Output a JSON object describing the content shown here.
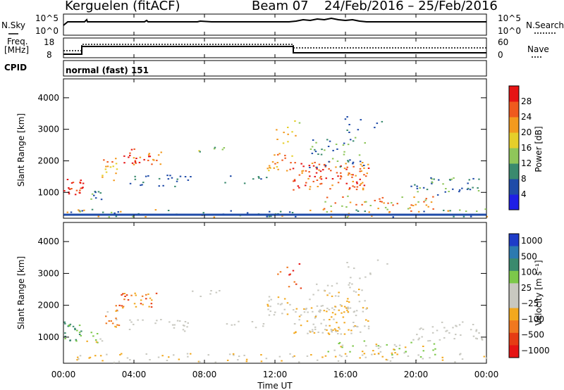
{
  "header": {
    "station": "Kerguelen (fitACF)",
    "beam": "Beam 07",
    "date_range": "24/Feb/2016 – 25/Feb/2016"
  },
  "noise_panel": {
    "left_label": "N.Sky",
    "right_label": "N.Search",
    "left_ticks": [
      "10^5",
      "10^0"
    ],
    "right_ticks": [
      "10^5",
      "10^0"
    ]
  },
  "freq_panel": {
    "left_label_1": "Freq.",
    "left_label_2": "[MHz]",
    "right_label": "Nave",
    "left_ticks": [
      "18",
      "8"
    ],
    "right_ticks": [
      "60",
      "0"
    ]
  },
  "cpid_panel": {
    "label": "CPID",
    "mode_text": "normal (fast) 151"
  },
  "chart_data": [
    {
      "type": "heatmap",
      "name": "power",
      "ylabel": "Slant Range [km]",
      "ylim": [
        180,
        4600
      ],
      "yticks": [
        "1000",
        "2000",
        "3000",
        "4000"
      ],
      "colorbar_label": "Power [dB]",
      "colorbar_ticks": [
        "4",
        "8",
        "12",
        "16",
        "20",
        "24",
        "28"
      ],
      "colors": [
        "#1e1ee6",
        "#1f4ba8",
        "#3a8a6e",
        "#8fc65a",
        "#e6cf2a",
        "#f39a1e",
        "#ef5a1e",
        "#e61414"
      ]
    },
    {
      "type": "heatmap",
      "name": "velocity",
      "ylabel": "Slant Range [km]",
      "ylim": [
        180,
        4600
      ],
      "yticks": [
        "1000",
        "2000",
        "3000",
        "4000"
      ],
      "colorbar_label": "Velocity [m s⁻¹]",
      "colorbar_ticks": [
        "1000",
        "500",
        "100",
        "25",
        "−25",
        "−100",
        "−500",
        "−1000"
      ],
      "colors": [
        "#1e3cc8",
        "#2c7ab0",
        "#3a8a6e",
        "#7cc84a",
        "#c8c8c0",
        "#c8c8c0",
        "#f2a81e",
        "#f07820",
        "#e63c14",
        "#e61414"
      ]
    }
  ],
  "x_axis": {
    "label": "Time UT",
    "ticks": [
      "00:00",
      "04:00",
      "08:00",
      "12:00",
      "16:00",
      "20:00",
      "00:00"
    ]
  }
}
